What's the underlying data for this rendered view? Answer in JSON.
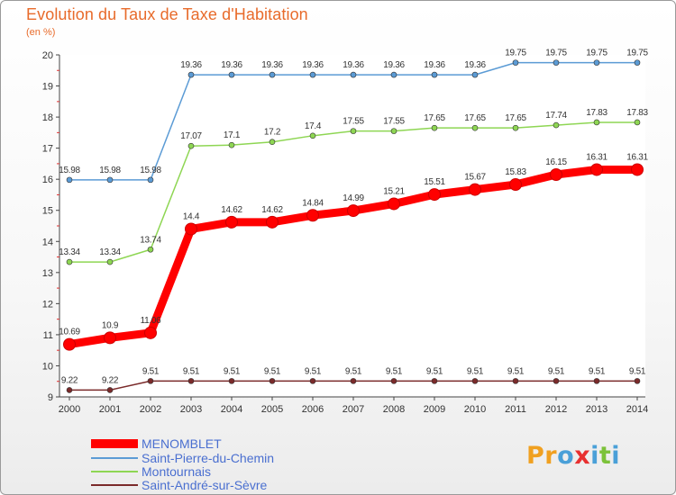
{
  "title": "Evolution du Taux de Taxe d'Habitation",
  "unit_label": "(en %)",
  "logo": {
    "text": "Proxiti",
    "letters": [
      {
        "ch": "P",
        "color": "#f0a020"
      },
      {
        "ch": "r",
        "color": "#f0a020"
      },
      {
        "ch": "o",
        "color": "#4aa0d8"
      },
      {
        "ch": "x",
        "color": "#e83030"
      },
      {
        "ch": "i",
        "color": "#4aa0d8"
      },
      {
        "ch": "t",
        "color": "#7cc23a"
      },
      {
        "ch": "i",
        "color": "#4aa0d8"
      }
    ]
  },
  "chart_data": {
    "type": "line",
    "title": "Evolution du Taux de Taxe d'Habitation",
    "ylabel": "(en %)",
    "xlabel": "",
    "x": [
      "2000",
      "2001",
      "2002",
      "2003",
      "2004",
      "2005",
      "2006",
      "2007",
      "2008",
      "2009",
      "2010",
      "2011",
      "2012",
      "2013",
      "2014"
    ],
    "ylim": [
      9,
      20
    ],
    "yticks": [
      "9",
      "10",
      "11",
      "12",
      "13",
      "14",
      "15",
      "16",
      "17",
      "18",
      "19",
      "20"
    ],
    "grid": false,
    "legend_position": "bottom-left",
    "series": [
      {
        "name": "MENOMBLET",
        "color": "#ff0000",
        "emphasis": "thick",
        "values": [
          10.69,
          10.9,
          11.06,
          14.4,
          14.62,
          14.62,
          14.84,
          14.99,
          15.21,
          15.51,
          15.67,
          15.83,
          16.15,
          16.31,
          16.31
        ],
        "labels": [
          "10.69",
          "10.9",
          "11.06",
          "14.4",
          "14.62",
          "14.62",
          "14.84",
          "14.99",
          "15.21",
          "15.51",
          "15.67",
          "15.83",
          "16.15",
          "16.31",
          "16.31"
        ]
      },
      {
        "name": "Saint-Pierre-du-Chemin",
        "color": "#5b9bd5",
        "values": [
          15.98,
          15.98,
          15.98,
          19.36,
          19.36,
          19.36,
          19.36,
          19.36,
          19.36,
          19.36,
          19.36,
          19.75,
          19.75,
          19.75,
          19.75
        ],
        "labels": [
          "15.98",
          "15.98",
          "15.98",
          "19.36",
          "19.36",
          "19.36",
          "19.36",
          "19.36",
          "19.36",
          "19.36",
          "19.36",
          "19.75",
          "19.75",
          "19.75",
          "19.75"
        ]
      },
      {
        "name": "Montournais",
        "color": "#8ed653",
        "values": [
          13.34,
          13.34,
          13.74,
          17.07,
          17.1,
          17.2,
          17.4,
          17.55,
          17.55,
          17.65,
          17.65,
          17.65,
          17.74,
          17.83,
          17.83
        ],
        "labels": [
          "13.34",
          "13.34",
          "13.74",
          "17.07",
          "17.1",
          "17.2",
          "17.4",
          "17.55",
          "17.55",
          "17.65",
          "17.65",
          "17.65",
          "17.74",
          "17.83",
          "17.83"
        ]
      },
      {
        "name": "Saint-André-sur-Sèvre",
        "color": "#7a2a2a",
        "values": [
          9.22,
          9.22,
          9.51,
          9.51,
          9.51,
          9.51,
          9.51,
          9.51,
          9.51,
          9.51,
          9.51,
          9.51,
          9.51,
          9.51,
          9.51
        ],
        "labels": [
          "9.22",
          "9.22",
          "9.51",
          "9.51",
          "9.51",
          "9.51",
          "9.51",
          "9.51",
          "9.51",
          "9.51",
          "9.51",
          "9.51",
          "9.51",
          "9.51",
          "9.51"
        ]
      }
    ]
  }
}
